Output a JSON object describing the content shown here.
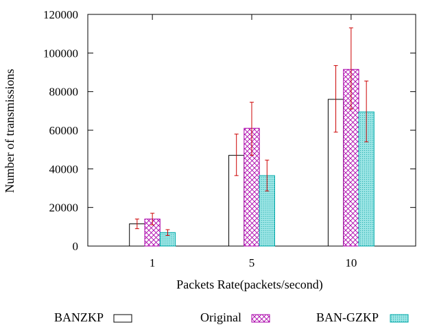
{
  "chart_data": {
    "type": "bar",
    "title": "",
    "xlabel": "Packets Rate(packets/second)",
    "ylabel": "Number of transmissions",
    "categories": [
      "1",
      "5",
      "10"
    ],
    "ylim": [
      0,
      120000
    ],
    "yticks": [
      0,
      20000,
      40000,
      60000,
      80000,
      100000,
      120000
    ],
    "ytick_labels": [
      "0",
      "20000",
      "40000",
      "60000",
      "80000",
      "100000",
      "120000"
    ],
    "grid": false,
    "legend_position": "bottom",
    "series": [
      {
        "name": "BANZKP",
        "values": [
          11500,
          47000,
          76000
        ],
        "err_low": [
          9000,
          36500,
          59000
        ],
        "err_high": [
          14000,
          58000,
          93500
        ],
        "fill": "none",
        "color": "#000000",
        "error_color": "#cc0000"
      },
      {
        "name": "Original",
        "values": [
          14000,
          61000,
          91500
        ],
        "err_low": [
          11000,
          47000,
          71000
        ],
        "err_high": [
          17000,
          74500,
          113000
        ],
        "fill": "crosshatch",
        "color": "#aa00aa",
        "error_color": "#cc0000"
      },
      {
        "name": "BAN-GZKP",
        "values": [
          7000,
          36500,
          69500
        ],
        "err_low": [
          5500,
          28500,
          54000
        ],
        "err_high": [
          8500,
          44500,
          85500
        ],
        "fill": "dots",
        "color": "#00aaaa",
        "error_color": "#cc0000"
      }
    ]
  }
}
